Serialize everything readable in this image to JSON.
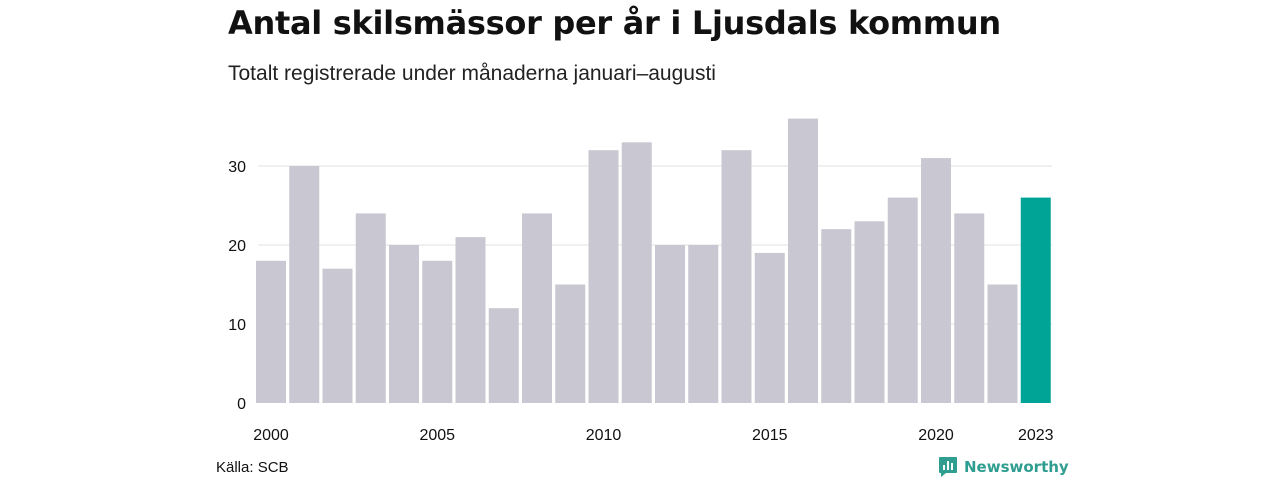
{
  "chart_data": {
    "type": "bar",
    "title": "Antal skilsmässor per år i Ljusdals kommun",
    "subtitle": "Totalt registrerade under månaderna januari–augusti",
    "categories": [
      2000,
      2001,
      2002,
      2003,
      2004,
      2005,
      2006,
      2007,
      2008,
      2009,
      2010,
      2011,
      2012,
      2013,
      2014,
      2015,
      2016,
      2017,
      2018,
      2019,
      2020,
      2021,
      2022,
      2023
    ],
    "values": [
      18,
      30,
      17,
      24,
      20,
      18,
      21,
      12,
      24,
      15,
      32,
      33,
      20,
      20,
      32,
      19,
      36,
      22,
      23,
      26,
      31,
      24,
      15,
      26
    ],
    "highlight_category": 2023,
    "x_tick_labels": [
      "2000",
      "2005",
      "2010",
      "2015",
      "2020",
      "2023"
    ],
    "y_ticks": [
      0,
      10,
      20,
      30
    ],
    "ylim": [
      0,
      36
    ],
    "grid": "horizontal",
    "xlabel": "",
    "ylabel": "",
    "colors": {
      "bar": "#c8c7d2",
      "highlight": "#00a497",
      "grid": "#e2e2e2"
    }
  },
  "footer": {
    "source": "Källa: SCB",
    "brand": "Newsworthy",
    "brand_icon": "newsworthy-logo-icon"
  }
}
